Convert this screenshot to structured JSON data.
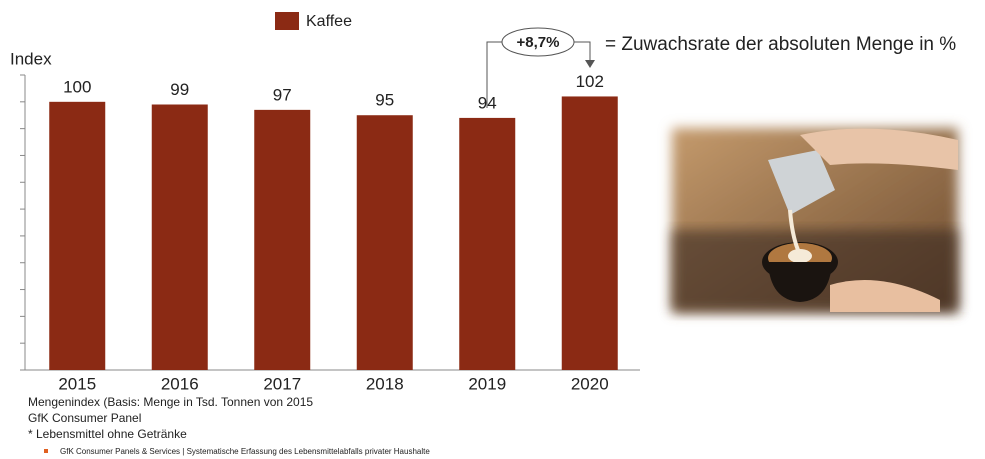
{
  "chart_data": {
    "type": "bar",
    "y_label": "Index",
    "categories": [
      "2015",
      "2016",
      "2017",
      "2018",
      "2019",
      "2020"
    ],
    "series": [
      {
        "name": "Kaffee",
        "color": "#8b2a14",
        "values": [
          100,
          99,
          97,
          95,
          94,
          102
        ]
      }
    ],
    "ylim": [
      0,
      110
    ],
    "yticks": [
      0,
      10,
      20,
      30,
      40,
      50,
      60,
      70,
      80,
      90,
      100,
      110
    ],
    "annotation": {
      "label": "+8,7%",
      "text": "= Zuwachsrate der absoluten Menge in %"
    },
    "footnotes": [
      "Mengenindex (Basis: Menge in Tsd. Tonnen von 2015",
      "GfK Consumer Panel",
      "* Lebensmittel ohne Getränke"
    ],
    "source": "GfK Consumer Panels & Services | Systematische Erfassung des Lebensmittelabfalls privater Haushalte"
  }
}
